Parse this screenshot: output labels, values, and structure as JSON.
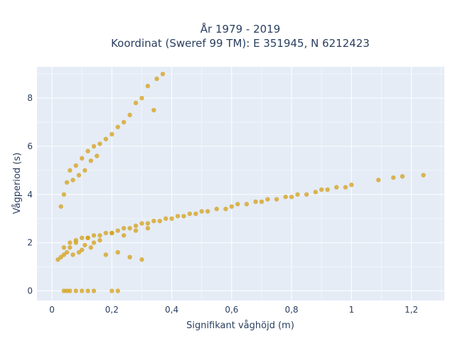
{
  "chart_data": {
    "type": "scatter",
    "title_line1": "År 1979 - 2019",
    "title_line2": "Koordinat (Sweref 99 TM): E 351945, N 6212423",
    "xlabel": "Signifikant våghöjd (m)",
    "ylabel": "Vågperiod (s)",
    "xlim": [
      -0.05,
      1.31
    ],
    "ylim": [
      -0.4,
      9.3
    ],
    "xticks": [
      0,
      0.2,
      0.4,
      0.6,
      0.8,
      1,
      1.2
    ],
    "xtick_labels": [
      "0",
      "0,2",
      "0,4",
      "0,6",
      "0,8",
      "1",
      "1,2"
    ],
    "yticks": [
      0,
      2,
      4,
      6,
      8
    ],
    "ytick_labels": [
      "0",
      "2",
      "4",
      "6",
      "8"
    ],
    "grid": true,
    "background_color": "#e5ecf6",
    "marker_color": "#d4a017",
    "marker_opacity": 0.75,
    "series": [
      {
        "x": [
          0.02,
          0.03,
          0.04,
          0.05,
          0.06,
          0.07,
          0.08,
          0.09,
          0.1,
          0.11,
          0.12,
          0.13,
          0.14,
          0.16,
          0.18,
          0.2,
          0.22,
          0.24,
          0.26,
          0.28,
          0.3,
          0.32,
          0.04,
          0.06,
          0.08,
          0.1,
          0.12,
          0.14,
          0.16,
          0.18,
          0.2,
          0.22,
          0.24,
          0.26,
          0.28,
          0.3,
          0.32,
          0.34,
          0.36,
          0.38,
          0.4,
          0.42,
          0.44,
          0.46,
          0.48,
          0.5,
          0.52,
          0.55,
          0.58,
          0.6,
          0.62,
          0.65,
          0.68,
          0.7,
          0.72,
          0.75,
          0.78,
          0.8,
          0.82,
          0.85,
          0.88,
          0.9,
          0.92,
          0.95,
          0.98,
          1.0,
          1.09,
          1.14,
          1.17,
          1.24,
          0.03,
          0.04,
          0.05,
          0.06,
          0.07,
          0.08,
          0.09,
          0.1,
          0.11,
          0.12,
          0.13,
          0.14,
          0.15,
          0.16,
          0.18,
          0.2,
          0.22,
          0.24,
          0.26,
          0.28,
          0.3,
          0.32,
          0.34,
          0.35,
          0.37,
          0.04,
          0.05,
          0.06,
          0.08,
          0.1,
          0.12,
          0.14,
          0.2,
          0.22
        ],
        "y": [
          1.3,
          1.4,
          1.5,
          1.6,
          1.8,
          1.5,
          2.0,
          1.6,
          1.7,
          1.9,
          2.2,
          1.8,
          2.0,
          2.1,
          1.5,
          2.4,
          1.6,
          2.3,
          1.4,
          2.5,
          1.3,
          2.6,
          1.8,
          2.0,
          2.1,
          2.2,
          2.2,
          2.3,
          2.3,
          2.4,
          2.4,
          2.5,
          2.6,
          2.6,
          2.7,
          2.8,
          2.8,
          2.9,
          2.9,
          3.0,
          3.0,
          3.1,
          3.1,
          3.2,
          3.2,
          3.3,
          3.3,
          3.4,
          3.4,
          3.5,
          3.6,
          3.6,
          3.7,
          3.7,
          3.8,
          3.8,
          3.9,
          3.9,
          4.0,
          4.0,
          4.1,
          4.2,
          4.2,
          4.3,
          4.3,
          4.4,
          4.6,
          4.7,
          4.75,
          4.8,
          3.5,
          4.0,
          4.5,
          5.0,
          4.6,
          5.2,
          4.8,
          5.5,
          5.0,
          5.8,
          5.4,
          6.0,
          5.6,
          6.1,
          6.3,
          6.5,
          6.8,
          7.0,
          7.3,
          7.8,
          8.0,
          8.5,
          7.5,
          8.8,
          9.0,
          0,
          0,
          0,
          0,
          0,
          0,
          0,
          0,
          0
        ]
      }
    ]
  }
}
